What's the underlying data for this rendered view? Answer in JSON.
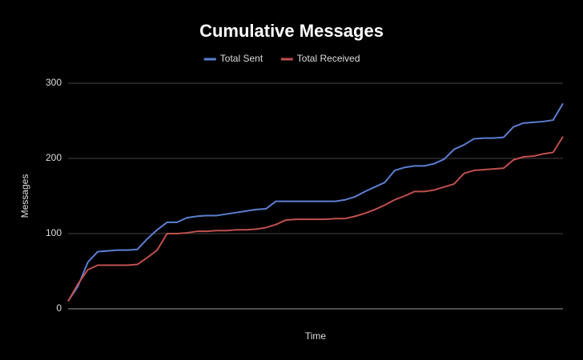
{
  "chart_data": {
    "type": "line",
    "title": "Cumulative Messages",
    "x_label": "Time",
    "y_label": "Messages",
    "categories": [
      null,
      null,
      null,
      null,
      null,
      null,
      null,
      null,
      null,
      null,
      null,
      null,
      null,
      null,
      null,
      null,
      null,
      null,
      null,
      null,
      null,
      null,
      null,
      null,
      null,
      null,
      null,
      null,
      null,
      null,
      null,
      null,
      null,
      null,
      null,
      null,
      null,
      null,
      null,
      null,
      null,
      null,
      null,
      null,
      null,
      null,
      null,
      null,
      null,
      null,
      null
    ],
    "series": [
      {
        "name": "Total Sent",
        "color": "#5b7fd1",
        "values": [
          10,
          30,
          62,
          76,
          77,
          78,
          78,
          79,
          93,
          105,
          115,
          115,
          121,
          123,
          124,
          124,
          126,
          128,
          130,
          132,
          133,
          143,
          143,
          143,
          143,
          143,
          143,
          143,
          145,
          149,
          156,
          162,
          168,
          184,
          188,
          190,
          190,
          193,
          199,
          212,
          218,
          226,
          227,
          227,
          228,
          242,
          247,
          248,
          249,
          251,
          273
        ]
      },
      {
        "name": "Total Received",
        "color": "#c0504d",
        "values": [
          10,
          33,
          52,
          58,
          58,
          58,
          58,
          59,
          68,
          78,
          100,
          100,
          101,
          103,
          103,
          104,
          104,
          105,
          105,
          106,
          108,
          112,
          118,
          119,
          119,
          119,
          119,
          120,
          120,
          123,
          127,
          132,
          138,
          145,
          150,
          156,
          156,
          158,
          162,
          166,
          180,
          184,
          185,
          186,
          187,
          198,
          202,
          203,
          206,
          208,
          229
        ]
      }
    ],
    "ylim": [
      0,
      300
    ],
    "yticks": [
      0,
      100,
      200,
      300
    ],
    "grid": true,
    "legend": "top"
  }
}
